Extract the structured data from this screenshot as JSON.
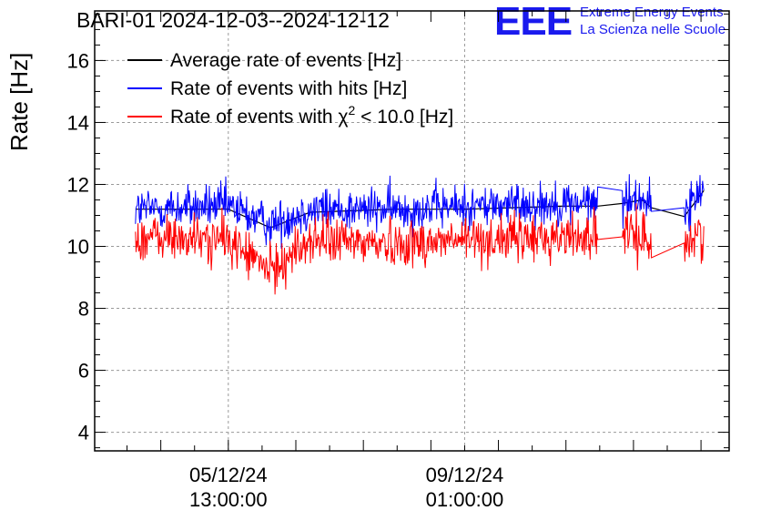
{
  "header": {
    "title": "BARI-01 2024-12-03--2024-12-12",
    "logo_text": "EEE",
    "org_line1": "Extreme Energy Events",
    "org_line2": "La Scienza nelle Scuole"
  },
  "colors": {
    "average": "#000000",
    "hits": "#0000ff",
    "chi2": "#ff0000",
    "brand": "#1a1aee",
    "grid": "#9a9a9a"
  },
  "chart_data": {
    "type": "line",
    "ylabel": "Rate [Hz]",
    "xlabel": "",
    "ylim": [
      3.4,
      17.6
    ],
    "yticks": [
      4,
      6,
      8,
      10,
      12,
      14,
      16
    ],
    "xlim": [
      "2024-12-03 13:30",
      "2024-12-12 23:00"
    ],
    "xticks": [
      {
        "x": "2024-12-05 13:00",
        "label_date": "05/12/24",
        "label_time": "13:00:00"
      },
      {
        "x": "2024-12-09 01:00",
        "label_date": "09/12/24",
        "label_time": "01:00:00"
      }
    ],
    "grid": true,
    "legend_position": "top-left",
    "legend": [
      {
        "label": "Average rate of events [Hz]",
        "color": "#000000"
      },
      {
        "label": "Rate of events with hits [Hz]",
        "color": "#0000ff"
      },
      {
        "label_prefix": "Rate of events with ",
        "label_symbol": "χ",
        "label_sup": "2",
        "label_suffix": " < 10.0 [Hz]",
        "color": "#ff0000"
      }
    ],
    "series": [
      {
        "name": "Average rate of events [Hz]",
        "color": "#000000",
        "x": [
          "2024-12-04 04:00",
          "2024-12-05 13:00",
          "2024-12-06 04:00",
          "2024-12-06 18:00",
          "2024-12-08 00:00",
          "2024-12-09 01:00",
          "2024-12-10 12:00",
          "2024-12-11 04:00",
          "2024-12-11 16:00",
          "2024-12-12 04:00",
          "2024-12-12 14:00"
        ],
        "y": [
          11.2,
          11.2,
          10.6,
          11.1,
          11.2,
          11.2,
          11.3,
          11.3,
          11.5,
          10.6,
          11.8
        ]
      },
      {
        "name": "Rate of events with hits [Hz]",
        "color": "#0000ff",
        "x": [
          "2024-12-04 04:00",
          "2024-12-05 13:00",
          "2024-12-06 04:00",
          "2024-12-06 18:00",
          "2024-12-08 00:00",
          "2024-12-09 01:00",
          "2024-12-10 12:00",
          "2024-12-11 04:00",
          "2024-12-11 16:00",
          "2024-12-12 04:00",
          "2024-12-12 14:00"
        ],
        "y": [
          11.2,
          11.3,
          10.7,
          11.2,
          11.2,
          11.3,
          11.4,
          11.4,
          11.6,
          10.7,
          11.9
        ]
      },
      {
        "name": "Rate of events with χ2 < 10.0 [Hz]",
        "color": "#ff0000",
        "x": [
          "2024-12-04 04:00",
          "2024-12-05 13:00",
          "2024-12-06 04:00",
          "2024-12-06 18:00",
          "2024-12-08 00:00",
          "2024-12-09 01:00",
          "2024-12-10 12:00",
          "2024-12-11 04:00",
          "2024-12-11 16:00",
          "2024-12-12 04:00",
          "2024-12-12 14:00"
        ],
        "y": [
          10.3,
          10.2,
          9.2,
          10.2,
          10.1,
          10.2,
          10.3,
          10.4,
          10.3,
          9.8,
          10.5
        ]
      }
    ]
  }
}
